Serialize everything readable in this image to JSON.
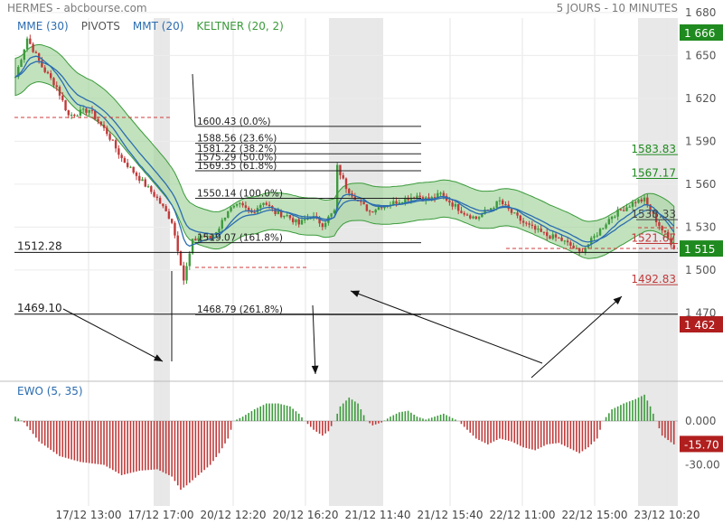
{
  "header": {
    "title": "HERMES - abcbourse.com",
    "period": "5 JOURS - 10 MINUTES"
  },
  "indicators": [
    {
      "label": "MME (30)",
      "color": "#2b6cb0"
    },
    {
      "label": "PIVOTS",
      "color": "#555555"
    },
    {
      "label": "MMT (20)",
      "color": "#2b6cb0"
    },
    {
      "label": "KELTNER (20, 2)",
      "color": "#3a9a3a"
    }
  ],
  "sub_indicator": {
    "label": "EWO (5, 35)",
    "color": "#2b6cb0"
  },
  "colors": {
    "up": "#3d9a3d",
    "down": "#c03a3a",
    "keltner_fill": "#9fd39a",
    "keltner_line": "#3a9a3a",
    "mme": "#2b6cb0",
    "mmt": "#2b6cb0",
    "session_shade": "#e8e8e8",
    "badge_green": "#1f8a1f",
    "badge_red": "#b01e1e"
  },
  "chart_data": {
    "type": "candlestick",
    "price_axis": {
      "min": 1450,
      "max": 1690,
      "ticks": [
        "1 680",
        "1 650",
        "1 620",
        "1 590",
        "1 560",
        "1 530",
        "1 500",
        "1 470"
      ]
    },
    "x_ticks": [
      "17/12 13:00",
      "17/12 17:00",
      "20/12 12:20",
      "20/12 16:20",
      "21/12 11:40",
      "21/12 15:40",
      "22/12 11:00",
      "22/12 15:00",
      "23/12 10:20"
    ],
    "close_path": [
      [
        0,
        1635
      ],
      [
        4,
        1662
      ],
      [
        9,
        1642
      ],
      [
        14,
        1628
      ],
      [
        18,
        1608
      ],
      [
        25,
        1612
      ],
      [
        31,
        1596
      ],
      [
        36,
        1578
      ],
      [
        42,
        1564
      ],
      [
        48,
        1550
      ],
      [
        53,
        1534
      ],
      [
        56,
        1505
      ],
      [
        57,
        1493
      ],
      [
        60,
        1520
      ],
      [
        63,
        1524
      ],
      [
        66,
        1522
      ],
      [
        69,
        1530
      ],
      [
        72,
        1542
      ],
      [
        76,
        1545
      ],
      [
        80,
        1540
      ],
      [
        84,
        1548
      ],
      [
        88,
        1540
      ],
      [
        92,
        1538
      ],
      [
        96,
        1532
      ],
      [
        100,
        1538
      ],
      [
        104,
        1532
      ],
      [
        108,
        1541
      ],
      [
        109,
        1572
      ],
      [
        112,
        1558
      ],
      [
        116,
        1548
      ],
      [
        120,
        1541
      ],
      [
        124,
        1545
      ],
      [
        128,
        1547
      ],
      [
        132,
        1550
      ],
      [
        136,
        1552
      ],
      [
        140,
        1549
      ],
      [
        144,
        1553
      ],
      [
        148,
        1546
      ],
      [
        152,
        1540
      ],
      [
        156,
        1536
      ],
      [
        160,
        1542
      ],
      [
        164,
        1548
      ],
      [
        168,
        1540
      ],
      [
        172,
        1533
      ],
      [
        176,
        1528
      ],
      [
        180,
        1524
      ],
      [
        184,
        1522
      ],
      [
        188,
        1517
      ],
      [
        191,
        1512
      ],
      [
        194,
        1518
      ],
      [
        198,
        1528
      ],
      [
        202,
        1538
      ],
      [
        206,
        1543
      ],
      [
        210,
        1548
      ],
      [
        213,
        1549
      ],
      [
        216,
        1538
      ],
      [
        219,
        1528
      ],
      [
        223,
        1516
      ]
    ],
    "keltner_band_width": 13,
    "mme_lag": 0.12,
    "mmt_lag": 0.2,
    "fibonacci": [
      {
        "label": "1600.43  (0.0%)",
        "value": 1600.43
      },
      {
        "label": "1588.56  (23.6%)",
        "value": 1588.56
      },
      {
        "label": "1581.22  (38.2%)",
        "value": 1581.22
      },
      {
        "label": "1575.29  (50.0%)",
        "value": 1575.29
      },
      {
        "label": "1569.35  (61.8%)",
        "value": 1569.35
      },
      {
        "label": "1550.14  (100.0%)",
        "value": 1550.14
      },
      {
        "label": "1519.07  (161.8%)",
        "value": 1519.07
      },
      {
        "label": "1468.79  (261.8%)",
        "value": 1468.79
      }
    ],
    "horizontal_lines": [
      {
        "label": "1512.28",
        "value": 1512.28
      },
      {
        "label": "1469.10",
        "value": 1469.1
      }
    ],
    "pivot_levels": [
      {
        "label": "1583.83",
        "value": 1583.83,
        "color": "#1f8a1f"
      },
      {
        "label": "1567.17",
        "value": 1567.17,
        "color": "#1f8a1f"
      },
      {
        "label": "1538.33",
        "value": 1538.33,
        "color": "#444444"
      },
      {
        "label": "1521.67",
        "value": 1521.67,
        "color": "#c03a3a"
      },
      {
        "label": "1492.83",
        "value": 1492.83,
        "color": "#c03a3a"
      }
    ],
    "price_badges": [
      {
        "label": "1 666",
        "value": 1666,
        "color": "#1f8a1f"
      },
      {
        "label": "1 515",
        "value": 1515,
        "color": "#1f8a1f"
      },
      {
        "label": "1 462",
        "value": 1462,
        "color": "#b01e1e"
      }
    ],
    "ewo": {
      "axis_min": -47,
      "axis_max": 37,
      "ticks": [
        "0.000",
        "-30.00"
      ],
      "current_label": "-15.70",
      "current_value": -15.7,
      "profile": [
        [
          0,
          3
        ],
        [
          3,
          -1
        ],
        [
          8,
          -14
        ],
        [
          15,
          -24
        ],
        [
          22,
          -28
        ],
        [
          30,
          -30
        ],
        [
          36,
          -37
        ],
        [
          42,
          -34
        ],
        [
          48,
          -33
        ],
        [
          53,
          -38
        ],
        [
          56,
          -47
        ],
        [
          58,
          -44
        ],
        [
          62,
          -37
        ],
        [
          66,
          -30
        ],
        [
          69,
          -22
        ],
        [
          72,
          -12
        ],
        [
          74,
          0
        ],
        [
          77,
          3
        ],
        [
          81,
          8
        ],
        [
          85,
          12
        ],
        [
          89,
          12
        ],
        [
          93,
          10
        ],
        [
          96,
          5
        ],
        [
          98,
          0
        ],
        [
          101,
          -6
        ],
        [
          104,
          -10
        ],
        [
          106,
          -7
        ],
        [
          108,
          0
        ],
        [
          110,
          10
        ],
        [
          113,
          16
        ],
        [
          116,
          12
        ],
        [
          119,
          0
        ],
        [
          121,
          -3
        ],
        [
          124,
          -1
        ],
        [
          127,
          3
        ],
        [
          130,
          6
        ],
        [
          133,
          7
        ],
        [
          136,
          3
        ],
        [
          139,
          1
        ],
        [
          142,
          3
        ],
        [
          145,
          5
        ],
        [
          148,
          2
        ],
        [
          150,
          0
        ],
        [
          153,
          -6
        ],
        [
          156,
          -12
        ],
        [
          160,
          -16
        ],
        [
          164,
          -12
        ],
        [
          168,
          -14
        ],
        [
          172,
          -18
        ],
        [
          176,
          -20
        ],
        [
          180,
          -16
        ],
        [
          184,
          -15
        ],
        [
          188,
          -19
        ],
        [
          191,
          -22
        ],
        [
          194,
          -18
        ],
        [
          197,
          -12
        ],
        [
          199,
          0
        ],
        [
          202,
          8
        ],
        [
          206,
          12
        ],
        [
          210,
          15
        ],
        [
          213,
          18
        ],
        [
          215,
          10
        ],
        [
          217,
          0
        ],
        [
          219,
          -10
        ],
        [
          223,
          -16
        ]
      ]
    }
  }
}
